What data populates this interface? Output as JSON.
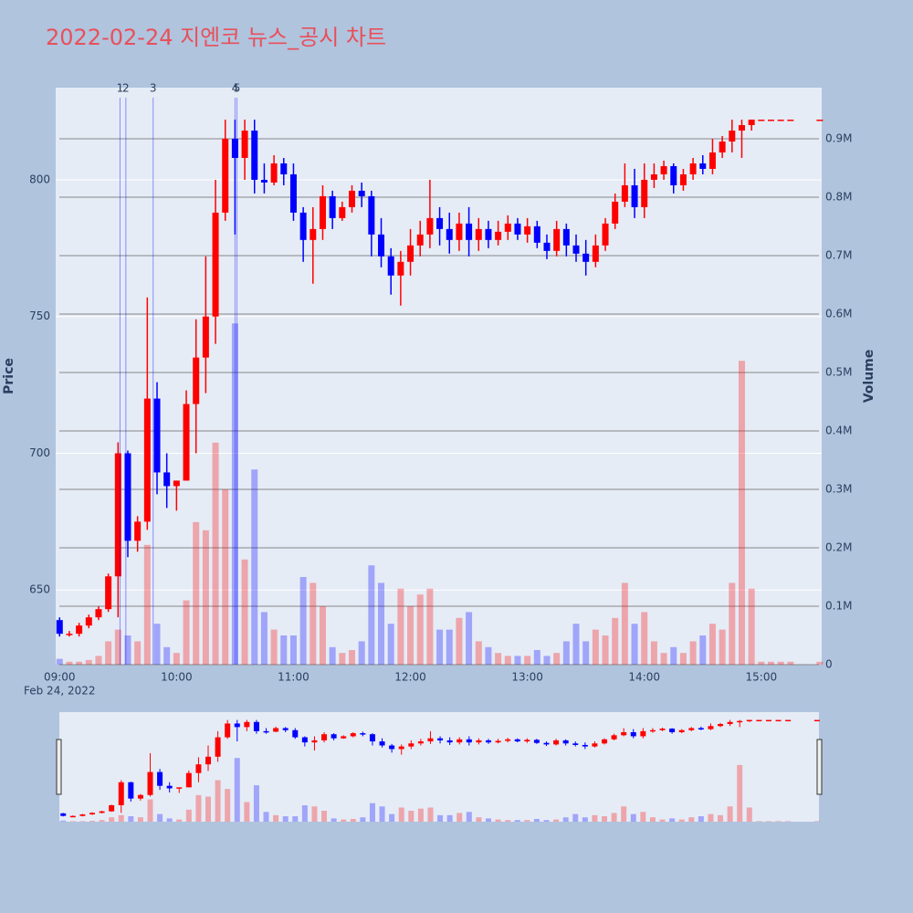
{
  "chart_data": {
    "type": "candlestick",
    "title": "2022-02-24 지엔코 뉴스_공시 차트",
    "y_title": "Price",
    "y2_title": "Volume",
    "x_date_label": "Feb 24, 2022",
    "increasing_color": "#ff0000",
    "decreasing_color": "#0000ff",
    "x": [
      "2022-02-24 09:00",
      "2022-02-24 09:05",
      "2022-02-24 09:10",
      "2022-02-24 09:15",
      "2022-02-24 09:20",
      "2022-02-24 09:25",
      "2022-02-24 09:30",
      "2022-02-24 09:35",
      "2022-02-24 09:40",
      "2022-02-24 09:45",
      "2022-02-24 09:50",
      "2022-02-24 09:55",
      "2022-02-24 10:00",
      "2022-02-24 10:05",
      "2022-02-24 10:10",
      "2022-02-24 10:15",
      "2022-02-24 10:20",
      "2022-02-24 10:25",
      "2022-02-24 10:30",
      "2022-02-24 10:35",
      "2022-02-24 10:40",
      "2022-02-24 10:45",
      "2022-02-24 10:50",
      "2022-02-24 10:55",
      "2022-02-24 11:00",
      "2022-02-24 11:05",
      "2022-02-24 11:10",
      "2022-02-24 11:15",
      "2022-02-24 11:20",
      "2022-02-24 11:25",
      "2022-02-24 11:30",
      "2022-02-24 11:35",
      "2022-02-24 11:40",
      "2022-02-24 11:45",
      "2022-02-24 11:50",
      "2022-02-24 11:55",
      "2022-02-24 12:00",
      "2022-02-24 12:05",
      "2022-02-24 12:10",
      "2022-02-24 12:15",
      "2022-02-24 12:20",
      "2022-02-24 12:25",
      "2022-02-24 12:30",
      "2022-02-24 12:35",
      "2022-02-24 12:40",
      "2022-02-24 12:45",
      "2022-02-24 12:50",
      "2022-02-24 12:55",
      "2022-02-24 13:00",
      "2022-02-24 13:05",
      "2022-02-24 13:10",
      "2022-02-24 13:15",
      "2022-02-24 13:20",
      "2022-02-24 13:25",
      "2022-02-24 13:30",
      "2022-02-24 13:35",
      "2022-02-24 13:40",
      "2022-02-24 13:45",
      "2022-02-24 13:50",
      "2022-02-24 13:55",
      "2022-02-24 14:00",
      "2022-02-24 14:05",
      "2022-02-24 14:10",
      "2022-02-24 14:15",
      "2022-02-24 14:20",
      "2022-02-24 14:25",
      "2022-02-24 14:30",
      "2022-02-24 14:35",
      "2022-02-24 14:40",
      "2022-02-24 14:45",
      "2022-02-24 14:50",
      "2022-02-24 14:55",
      "2022-02-24 15:00",
      "2022-02-24 15:05",
      "2022-02-24 15:10",
      "2022-02-24 15:15",
      "2022-02-24 15:30"
    ],
    "open": [
      639,
      634,
      634,
      637,
      640,
      643,
      655,
      700,
      668,
      675,
      720,
      693,
      688,
      690,
      718,
      735,
      750,
      788,
      815,
      808,
      818,
      800,
      799,
      806,
      802,
      788,
      778,
      782,
      794,
      786,
      790,
      796,
      794,
      780,
      772,
      765,
      770,
      776,
      780,
      786,
      782,
      778,
      784,
      778,
      782,
      778,
      781,
      784,
      780,
      783,
      777,
      774,
      782,
      776,
      773,
      770,
      776,
      784,
      792,
      798,
      790,
      800,
      802,
      805,
      798,
      802,
      806,
      804,
      810,
      814,
      818,
      820,
      822,
      822,
      822,
      822,
      822
    ],
    "high": [
      640,
      635,
      638,
      641,
      644,
      656,
      704,
      701,
      677,
      757,
      726,
      700,
      690,
      723,
      749,
      772,
      800,
      822,
      822,
      822,
      822,
      806,
      809,
      808,
      806,
      790,
      790,
      798,
      796,
      792,
      798,
      799,
      796,
      786,
      775,
      774,
      782,
      785,
      800,
      790,
      788,
      788,
      790,
      786,
      785,
      785,
      787,
      786,
      786,
      785,
      780,
      785,
      784,
      780,
      778,
      780,
      786,
      795,
      806,
      804,
      806,
      806,
      807,
      806,
      804,
      808,
      809,
      815,
      816,
      822,
      822,
      822,
      822,
      822,
      822,
      822,
      822
    ],
    "low": [
      633,
      633,
      633,
      636,
      639,
      642,
      640,
      662,
      664,
      672,
      685,
      680,
      679,
      690,
      700,
      722,
      740,
      785,
      780,
      800,
      795,
      795,
      798,
      798,
      785,
      770,
      762,
      778,
      782,
      785,
      788,
      790,
      772,
      768,
      758,
      754,
      765,
      772,
      775,
      776,
      773,
      774,
      772,
      774,
      775,
      776,
      778,
      778,
      777,
      775,
      771,
      772,
      772,
      770,
      765,
      768,
      774,
      782,
      790,
      786,
      786,
      797,
      800,
      795,
      796,
      800,
      802,
      802,
      808,
      810,
      808,
      818,
      822,
      822,
      822,
      822,
      822
    ],
    "close": [
      634,
      634,
      637,
      640,
      643,
      655,
      700,
      668,
      675,
      720,
      693,
      688,
      690,
      718,
      735,
      750,
      788,
      815,
      808,
      818,
      800,
      799,
      806,
      802,
      788,
      778,
      782,
      794,
      786,
      790,
      796,
      794,
      780,
      772,
      765,
      770,
      776,
      780,
      786,
      782,
      778,
      784,
      778,
      782,
      778,
      781,
      784,
      780,
      783,
      777,
      774,
      782,
      776,
      773,
      770,
      776,
      784,
      792,
      798,
      790,
      800,
      802,
      805,
      798,
      802,
      806,
      804,
      810,
      814,
      818,
      820,
      822,
      822,
      822,
      822,
      822,
      822
    ],
    "volume": [
      10000,
      5000,
      5000,
      8000,
      15000,
      40000,
      60000,
      50000,
      40000,
      205000,
      70000,
      30000,
      20000,
      110000,
      244000,
      230000,
      380000,
      300000,
      584000,
      180000,
      334000,
      90000,
      60000,
      50000,
      50000,
      150000,
      140000,
      100000,
      30000,
      20000,
      25000,
      40000,
      170000,
      140000,
      70000,
      130000,
      100000,
      120000,
      130000,
      60000,
      60000,
      80000,
      90000,
      40000,
      30000,
      20000,
      15000,
      15000,
      15000,
      25000,
      15000,
      20000,
      40000,
      70000,
      40000,
      60000,
      50000,
      80000,
      140000,
      70000,
      90000,
      40000,
      20000,
      30000,
      20000,
      40000,
      50000,
      70000,
      60000,
      140000,
      520000,
      130000,
      5000,
      5000,
      5000,
      5000,
      5000
    ],
    "annotations": [
      {
        "text": "1",
        "x": "2022-02-24 09:31"
      },
      {
        "text": "2",
        "x": "2022-02-24 09:34"
      },
      {
        "text": "3",
        "x": "2022-02-24 09:48"
      },
      {
        "text": "4",
        "x": "2022-02-24 10:30"
      },
      {
        "text": "5",
        "x": "2022-02-24 10:31"
      }
    ],
    "xlim": [
      "2022-02-24 08:58",
      "2022-02-24 15:31"
    ],
    "xticks": [
      {
        "value": "2022-02-24 09:00",
        "label": "09:00"
      },
      {
        "value": "2022-02-24 10:00",
        "label": "10:00"
      },
      {
        "value": "2022-02-24 11:00",
        "label": "11:00"
      },
      {
        "value": "2022-02-24 12:00",
        "label": "12:00"
      },
      {
        "value": "2022-02-24 13:00",
        "label": "13:00"
      },
      {
        "value": "2022-02-24 14:00",
        "label": "14:00"
      },
      {
        "value": "2022-02-24 15:00",
        "label": "15:00"
      }
    ],
    "ylim": [
      622.7,
      833.7
    ],
    "yticks": [
      650,
      700,
      750,
      800
    ],
    "y2lim": [
      0,
      987500
    ],
    "y2ticks": [
      0,
      {
        "value": 100000,
        "label": "0.1M"
      },
      {
        "value": 200000,
        "label": "0.2M"
      },
      {
        "value": 300000,
        "label": "0.3M"
      },
      {
        "value": 400000,
        "label": "0.4M"
      },
      {
        "value": 500000,
        "label": "0.5M"
      },
      {
        "value": 600000,
        "label": "0.6M"
      },
      {
        "value": 700000,
        "label": "0.7M"
      },
      {
        "value": 800000,
        "label": "0.8M"
      },
      {
        "value": 900000,
        "label": "0.9M"
      }
    ],
    "grid": true,
    "rangeslider": true
  }
}
